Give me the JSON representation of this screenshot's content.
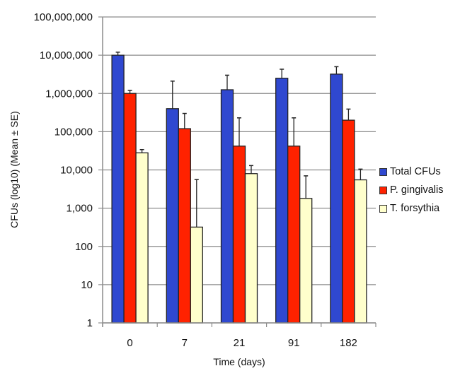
{
  "chart_data": {
    "type": "bar",
    "title": "",
    "xlabel": "Time (days)",
    "ylabel": "CFUs (log10) (Mean ± SE)",
    "yscale": "log",
    "ylim": [
      1,
      100000000
    ],
    "yticks": [
      "1",
      "10",
      "100",
      "1,000",
      "10,000",
      "100,000",
      "1,000,000",
      "10,000,000",
      "100,000,000"
    ],
    "categories": [
      "0",
      "7",
      "21",
      "91",
      "182"
    ],
    "grid": true,
    "legend_position": "right",
    "series": [
      {
        "name": "Total CFUs",
        "color": "#2f48d0",
        "values": [
          10000000,
          400000,
          1250000,
          2500000,
          3200000
        ],
        "error_upper": [
          12000000,
          2100000,
          3000000,
          4300000,
          5000000
        ]
      },
      {
        "name": "P. gingivalis",
        "color": "#ff2200",
        "values": [
          1000000,
          120000,
          42000,
          42000,
          200000
        ],
        "error_upper": [
          1200000,
          300000,
          230000,
          230000,
          390000
        ]
      },
      {
        "name": "T. forsythia",
        "color": "#ffffcc",
        "values": [
          28000,
          320,
          8000,
          1800,
          5500
        ],
        "error_upper": [
          34000,
          5600,
          13000,
          7000,
          10500
        ]
      }
    ]
  }
}
